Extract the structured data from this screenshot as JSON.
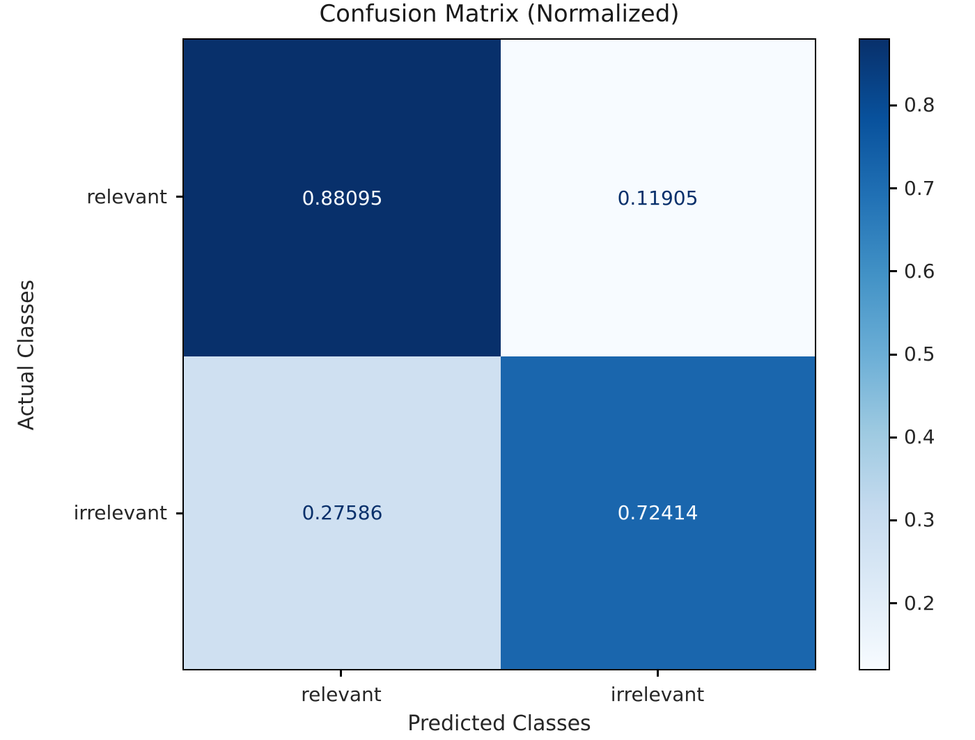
{
  "title": "Confusion Matrix (Normalized)",
  "chart_data": {
    "type": "heatmap",
    "title": "Confusion Matrix (Normalized)",
    "xlabel": "Predicted Classes",
    "ylabel": "Actual Classes",
    "x_categories": [
      "relevant",
      "irrelevant"
    ],
    "y_categories": [
      "relevant",
      "irrelevant"
    ],
    "values": [
      [
        0.88095,
        0.11905
      ],
      [
        0.27586,
        0.72414
      ]
    ],
    "cells": [
      {
        "row": "relevant",
        "col": "relevant",
        "label": "0.88095",
        "bg": "#08306b",
        "fg": "#f7fbff"
      },
      {
        "row": "relevant",
        "col": "irrelevant",
        "label": "0.11905",
        "bg": "#f7fbff",
        "fg": "#08306b"
      },
      {
        "row": "irrelevant",
        "col": "relevant",
        "label": "0.27586",
        "bg": "#cfe0f1",
        "fg": "#08306b"
      },
      {
        "row": "irrelevant",
        "col": "irrelevant",
        "label": "0.72414",
        "bg": "#1a66ad",
        "fg": "#f7fbff"
      }
    ],
    "colormap": {
      "name": "Blues",
      "stops": [
        "#f7fbff",
        "#deebf7",
        "#c6dbef",
        "#9ecae1",
        "#6baed6",
        "#4292c6",
        "#2171b5",
        "#08519c",
        "#08306b"
      ]
    },
    "colorbar": {
      "vmin": 0.11905,
      "vmax": 0.88095,
      "ticks": [
        0.2,
        0.3,
        0.4,
        0.5,
        0.6,
        0.7,
        0.8
      ],
      "tick_labels": [
        "0.2",
        "0.3",
        "0.4",
        "0.5",
        "0.6",
        "0.7",
        "0.8"
      ]
    },
    "legend_position": "right-colorbar",
    "grid": false
  }
}
